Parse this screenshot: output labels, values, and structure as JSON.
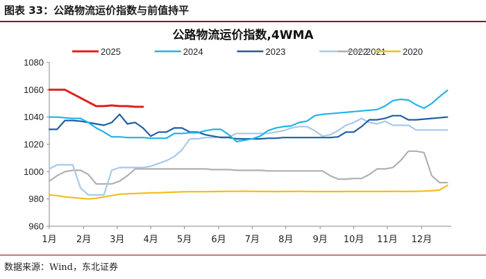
{
  "figure_title": "图表 33：公路物流运价指数与前值持平",
  "source": "数据来源：Wind，东北证券",
  "chart_data": {
    "type": "line",
    "title": "公路物流运价指数,4WMA",
    "xlabel": "",
    "ylabel": "",
    "ylim": [
      960,
      1080
    ],
    "yticks": [
      960,
      980,
      1000,
      1020,
      1040,
      1060,
      1080
    ],
    "xlim": [
      0,
      51.5
    ],
    "x_tick_labels": [
      "1月",
      "2月",
      "3月",
      "4月",
      "5月",
      "6月",
      "7月",
      "8月",
      "9月",
      "10月",
      "11月",
      "12月"
    ],
    "x_tick_positions": [
      0,
      4.4,
      8.7,
      13,
      17.3,
      21.7,
      26,
      30.3,
      34.7,
      39,
      43.3,
      47.7
    ],
    "grid": false,
    "legend_position": "top",
    "series": [
      {
        "name": "2025",
        "color": "#e0201b",
        "x": [
          0,
          1,
          2,
          3,
          4,
          5,
          6,
          7,
          8,
          9,
          10,
          11,
          12
        ],
        "values": [
          1060,
          1060,
          1060,
          1057,
          1054,
          1051,
          1048,
          1048,
          1048.5,
          1048,
          1048,
          1047.5,
          1047.5
        ]
      },
      {
        "name": "2024",
        "color": "#1fb4e6",
        "x": [
          0,
          1,
          2,
          3,
          4,
          5,
          6,
          7,
          8,
          9,
          10,
          11,
          12,
          13,
          14,
          15,
          16,
          17,
          18,
          19,
          20,
          21,
          22,
          23,
          24,
          25,
          26,
          27,
          28,
          29,
          30,
          31,
          32,
          33,
          34,
          35,
          36,
          37,
          38,
          39,
          40,
          41,
          42,
          43,
          44,
          45,
          46,
          47,
          48,
          49,
          50,
          51
        ],
        "values": [
          1040,
          1040,
          1039.5,
          1039,
          1039,
          1036,
          1032,
          1029,
          1025.5,
          1025.5,
          1025,
          1025,
          1025,
          1024.5,
          1024.5,
          1024.5,
          1028,
          1028,
          1028.5,
          1028.5,
          1030,
          1031,
          1031,
          1027,
          1022,
          1023,
          1024,
          1026,
          1030,
          1032,
          1033,
          1033.5,
          1036,
          1037,
          1041,
          1042,
          1042.5,
          1043,
          1043.5,
          1044,
          1044.5,
          1045,
          1045.5,
          1048,
          1052,
          1053,
          1052.5,
          1049,
          1046.5,
          1050,
          1055,
          1059.5
        ]
      },
      {
        "name": "2023",
        "color": "#1f5fa0",
        "x": [
          0,
          1,
          2,
          3,
          4,
          5,
          6,
          7,
          8,
          9,
          10,
          11,
          12,
          13,
          14,
          15,
          16,
          17,
          18,
          19,
          20,
          21,
          22,
          23,
          24,
          25,
          26,
          27,
          28,
          29,
          30,
          31,
          32,
          33,
          34,
          35,
          36,
          37,
          38,
          39,
          40,
          41,
          42,
          43,
          44,
          45,
          46,
          47,
          48,
          49,
          50,
          51
        ],
        "values": [
          1031,
          1031,
          1037.5,
          1037.5,
          1037,
          1036,
          1035,
          1034,
          1036,
          1042,
          1035,
          1036,
          1032,
          1026,
          1029,
          1029,
          1032,
          1032,
          1029,
          1029,
          1027,
          1026,
          1025,
          1025,
          1024,
          1024,
          1024,
          1024,
          1024.5,
          1024.5,
          1025,
          1025,
          1025,
          1025,
          1025,
          1025,
          1025,
          1025.5,
          1029,
          1029,
          1033,
          1038,
          1038,
          1039,
          1041,
          1041,
          1038,
          1038,
          1038.5,
          1039,
          1039.5,
          1040
        ]
      },
      {
        "name": "2022",
        "color": "#a8c8e8",
        "x": [
          0,
          1,
          2,
          3,
          4,
          5,
          6,
          7,
          8,
          9,
          10,
          11,
          12,
          13,
          14,
          15,
          16,
          17,
          18,
          19,
          20,
          21,
          22,
          23,
          24,
          25,
          26,
          27,
          28,
          29,
          30,
          31,
          32,
          33,
          34,
          35,
          36,
          37,
          38,
          39,
          40,
          41,
          42,
          43,
          44,
          45,
          46,
          47,
          48,
          49,
          50,
          51
        ],
        "values": [
          1002,
          1005,
          1005,
          1005,
          988,
          983,
          983,
          983,
          1001,
          1003,
          1003,
          1003,
          1003,
          1004,
          1006,
          1008,
          1011,
          1016,
          1024,
          1024,
          1025,
          1025,
          1025.5,
          1025.5,
          1028,
          1028,
          1028,
          1028,
          1028,
          1029,
          1030,
          1032,
          1033,
          1033,
          1030,
          1026,
          1027,
          1030,
          1034,
          1036,
          1039,
          1036,
          1035,
          1037,
          1034,
          1034,
          1034,
          1030.5,
          1030.5,
          1030.5,
          1030.5,
          1030.5
        ]
      },
      {
        "name": "2021",
        "color": "#b0b0b0",
        "x": [
          0,
          1,
          2,
          3,
          4,
          5,
          6,
          7,
          8,
          9,
          10,
          11,
          12,
          13,
          14,
          15,
          16,
          17,
          18,
          19,
          20,
          21,
          22,
          23,
          24,
          25,
          26,
          27,
          28,
          29,
          30,
          31,
          32,
          33,
          34,
          35,
          36,
          37,
          38,
          39,
          40,
          41,
          42,
          43,
          44,
          45,
          46,
          47,
          48,
          49,
          50,
          51
        ],
        "values": [
          993,
          997,
          1000,
          1001,
          1001,
          998,
          991,
          991,
          991,
          993,
          997,
          1002,
          1002,
          1002,
          1002,
          1002,
          1002,
          1002,
          1002,
          1002,
          1002,
          1001.5,
          1001.5,
          1001.5,
          1001,
          1001,
          1001,
          1001,
          1000.5,
          1000.5,
          1000.5,
          1000.5,
          1000.5,
          1000.5,
          1000.5,
          1000.5,
          997,
          994.5,
          994.5,
          995,
          995,
          998,
          1002,
          1002,
          1003,
          1008,
          1015,
          1015,
          1014,
          997,
          992,
          992
        ]
      },
      {
        "name": "2020",
        "color": "#f2bd1a",
        "x": [
          0,
          1,
          2,
          3,
          4,
          5,
          6,
          7,
          8,
          9,
          10,
          11,
          12,
          13,
          14,
          15,
          16,
          17,
          18,
          19,
          20,
          21,
          22,
          23,
          24,
          25,
          26,
          27,
          28,
          29,
          30,
          31,
          32,
          33,
          34,
          35,
          36,
          37,
          38,
          39,
          40,
          41,
          42,
          43,
          44,
          45,
          46,
          47,
          48,
          49,
          50,
          51
        ],
        "values": [
          983,
          982.5,
          981.5,
          981,
          980.5,
          980,
          980.5,
          981.5,
          982.5,
          983.5,
          983.8,
          984,
          984.2,
          984.5,
          984.5,
          984.8,
          985,
          985.2,
          985.3,
          985.3,
          985.3,
          985.4,
          985.5,
          985.6,
          985.6,
          985.7,
          985.6,
          985.5,
          985.5,
          985.4,
          985.5,
          985.5,
          985.6,
          985.5,
          985.4,
          985.4,
          985.4,
          985.4,
          985.5,
          985.5,
          985.5,
          985.5,
          985.5,
          985.5,
          985.6,
          985.5,
          985.5,
          985.6,
          985.8,
          986,
          986.5,
          990
        ]
      }
    ]
  }
}
